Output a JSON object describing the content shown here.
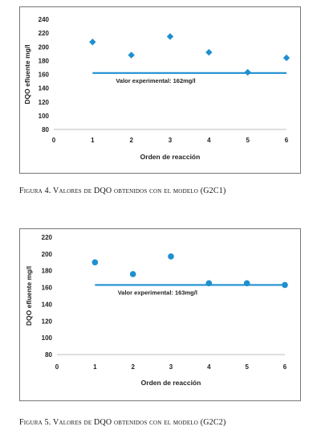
{
  "figures": [
    {
      "caption": "Figura 4. Valores de DQO obtenidos con el modelo (G2C1)",
      "chart_data": {
        "type": "scatter",
        "x": [
          1,
          2,
          3,
          4,
          5,
          6
        ],
        "y": [
          207,
          188,
          215,
          192,
          163,
          184
        ],
        "marker_shape": "diamond",
        "xlabel": "Orden de reacción",
        "ylabel": "DQO efluente mg/l",
        "xlim": [
          0,
          6
        ],
        "ylim": [
          80,
          240
        ],
        "xticks": [
          "0",
          "1",
          "2",
          "3",
          "4",
          "5",
          "6"
        ],
        "yticks": [
          "80",
          "100",
          "120",
          "140",
          "160",
          "180",
          "200",
          "220",
          "240"
        ],
        "reference_line": {
          "y": 162,
          "x_range": [
            1,
            6
          ],
          "label": "Valor experimental: 162mg/l"
        },
        "grid": false,
        "legend": "none",
        "marker_color": "#1f8fd0",
        "line_color": "#1f8fd0"
      }
    },
    {
      "caption": "Figura 5. Valores de DQO obtenidos con el modelo (G2C2)",
      "chart_data": {
        "type": "scatter",
        "x": [
          1,
          2,
          3,
          4,
          5,
          6
        ],
        "y": [
          190,
          176,
          197,
          165,
          165,
          163
        ],
        "marker_shape": "circle",
        "xlabel": "Orden de reacción",
        "ylabel": "DQO efluente mg/l",
        "xlim": [
          0,
          6
        ],
        "ylim": [
          80,
          220
        ],
        "xticks": [
          "0",
          "1",
          "2",
          "3",
          "4",
          "5",
          "6"
        ],
        "yticks": [
          "80",
          "100",
          "120",
          "140",
          "160",
          "180",
          "200",
          "220"
        ],
        "reference_line": {
          "y": 163,
          "x_range": [
            1,
            6
          ],
          "label": "Valor experimental: 163mg/l"
        },
        "grid": false,
        "legend": "none",
        "marker_color": "#1f8fd0",
        "line_color": "#1f8fd0"
      }
    }
  ]
}
